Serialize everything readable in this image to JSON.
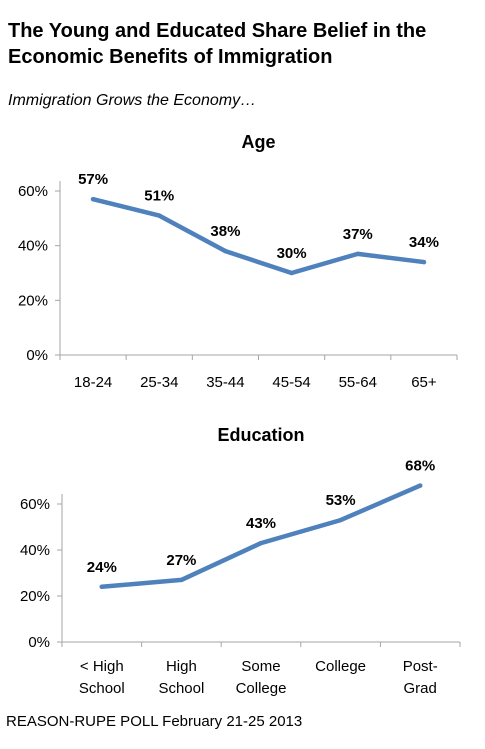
{
  "header": {
    "title": "The Young and Educated Share Belief in the Economic Benefits of Immigration",
    "subtitle": "Immigration Grows the Economy…"
  },
  "footer": {
    "source": "REASON-RUPE POLL February 21-25 2013"
  },
  "colors": {
    "line": "#4f81bd",
    "axis": "#a6a6a6",
    "text": "#000000"
  },
  "chart_data": [
    {
      "type": "line",
      "title": "Age",
      "categories": [
        "18-24",
        "25-34",
        "35-44",
        "45-54",
        "55-64",
        "65+"
      ],
      "values": [
        57,
        51,
        38,
        30,
        37,
        34
      ],
      "data_labels": [
        "57%",
        "51%",
        "38%",
        "30%",
        "37%",
        "34%"
      ],
      "yticks": [
        "0%",
        "20%",
        "40%",
        "60%"
      ],
      "ylim": [
        0,
        60
      ],
      "grid": false,
      "legend": "none"
    },
    {
      "type": "line",
      "title": "Education",
      "categories": [
        [
          "< High",
          "School"
        ],
        [
          "High",
          "School"
        ],
        [
          "Some",
          "College"
        ],
        [
          "College"
        ],
        [
          "Post-",
          "Grad"
        ]
      ],
      "values": [
        24,
        27,
        43,
        53,
        68
      ],
      "data_labels": [
        "24%",
        "27%",
        "43%",
        "53%",
        "68%"
      ],
      "yticks": [
        "0%",
        "20%",
        "40%",
        "60%"
      ],
      "ylim": [
        0,
        60
      ],
      "grid": false,
      "legend": "none"
    }
  ]
}
